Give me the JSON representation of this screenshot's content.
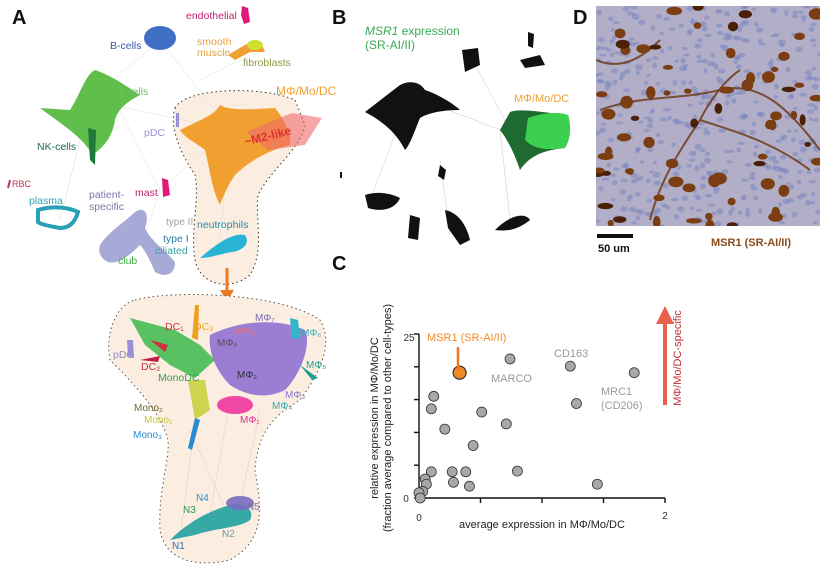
{
  "panels": {
    "a": "A",
    "b": "B",
    "c": "C",
    "d": "D"
  },
  "panel_a": {
    "top_labels": {
      "endothelial": "endothelial",
      "smooth": "smooth",
      "muscle": "muscle",
      "fibroblasts": "fibroblasts",
      "bcells": "B-cells",
      "tcells": "T-cells",
      "pdc": "pDC",
      "mmd": "MΦ/Mo/DC",
      "m2": "~M2-like",
      "nk": "NK-cells",
      "rbc": "RBC",
      "mast": "mast",
      "plasma": "plasma",
      "patient": "patient-",
      "specific": "specific",
      "type2": "type II",
      "type1": "type I",
      "ciliated": "ciliated",
      "club": "club",
      "neutrophils": "neutrophils"
    },
    "sub_labels": {
      "dc1": "DC₁",
      "dc3": "DC₃",
      "mf8": "MΦ₈",
      "mf7": "MΦ₇",
      "mf6": "MΦ₆",
      "mf9": "MΦ₉",
      "pdc": "pDC",
      "dc2": "DC₂",
      "mf5": "MΦ₅",
      "monodc": "MonoDC",
      "mf2": "MΦ₂",
      "mf3": "MΦ₃",
      "mf4": "MΦ₄",
      "mono2": "Mono₂",
      "mono1": "Mono₁",
      "mf1": "MΦ₁",
      "mono3": "Mono₃",
      "n4": "N4",
      "n3": "N3",
      "n5": "N5",
      "n2": "N2",
      "n1": "N1"
    }
  },
  "panel_b": {
    "gene": "MSR1",
    "expression": " expression",
    "protein": "(SR-AI/II)",
    "cluster": "MΦ/Mo/DC"
  },
  "panel_d": {
    "scale_bar": "50 um",
    "stain": "MSR1 (SR-AI/II)"
  },
  "colors": {
    "accent_orange": "#f08a24",
    "arrow_red": "#e8604c",
    "point_gray": "#a8a8a8",
    "stain_brown": "#7a3e12"
  },
  "chart_data": {
    "type": "scatter",
    "title": "",
    "xlabel": "average expression in MΦ/Mo/DC",
    "ylabel": "relative expression in MΦ/Mo/DC",
    "ylabel2": "(fraction average compared to other cell-types)",
    "xlim": [
      0,
      2
    ],
    "ylim": [
      0,
      25
    ],
    "x_ticks": [
      0,
      0.5,
      1,
      1.5,
      2
    ],
    "y_ticks": [
      0,
      5,
      10,
      15,
      20,
      25
    ],
    "x_tick_labels": {
      "min": "0",
      "max": "2"
    },
    "y_tick_labels": {
      "min": "0",
      "max": "25"
    },
    "points": [
      {
        "x": 0.33,
        "y": 19.1,
        "highlight": true
      },
      {
        "x": 0.74,
        "y": 21.2
      },
      {
        "x": 1.23,
        "y": 20.1
      },
      {
        "x": 1.75,
        "y": 19.1
      },
      {
        "x": 1.28,
        "y": 14.4
      },
      {
        "x": 0.12,
        "y": 15.5
      },
      {
        "x": 0.1,
        "y": 13.6
      },
      {
        "x": 0.51,
        "y": 13.1
      },
      {
        "x": 0.71,
        "y": 11.3
      },
      {
        "x": 0.21,
        "y": 10.5
      },
      {
        "x": 0.44,
        "y": 8.0
      },
      {
        "x": 0.1,
        "y": 4.0
      },
      {
        "x": 0.27,
        "y": 4.0
      },
      {
        "x": 0.38,
        "y": 4.0
      },
      {
        "x": 0.8,
        "y": 4.1
      },
      {
        "x": 0.28,
        "y": 2.4
      },
      {
        "x": 0.41,
        "y": 1.8
      },
      {
        "x": 1.45,
        "y": 2.1
      },
      {
        "x": 0.05,
        "y": 2.9
      },
      {
        "x": 0.06,
        "y": 2.1
      },
      {
        "x": 0.03,
        "y": 1.0
      },
      {
        "x": 0.0,
        "y": 0.8
      },
      {
        "x": 0.01,
        "y": 0.0
      }
    ],
    "annotations": {
      "msr1": "MSR1 (SR-AI/II)",
      "marco": "MARCO",
      "cd163": "CD163",
      "mrc1": "MRC1",
      "cd206": "(CD206)",
      "specific": "MΦ/Mo/DC-specific"
    }
  }
}
